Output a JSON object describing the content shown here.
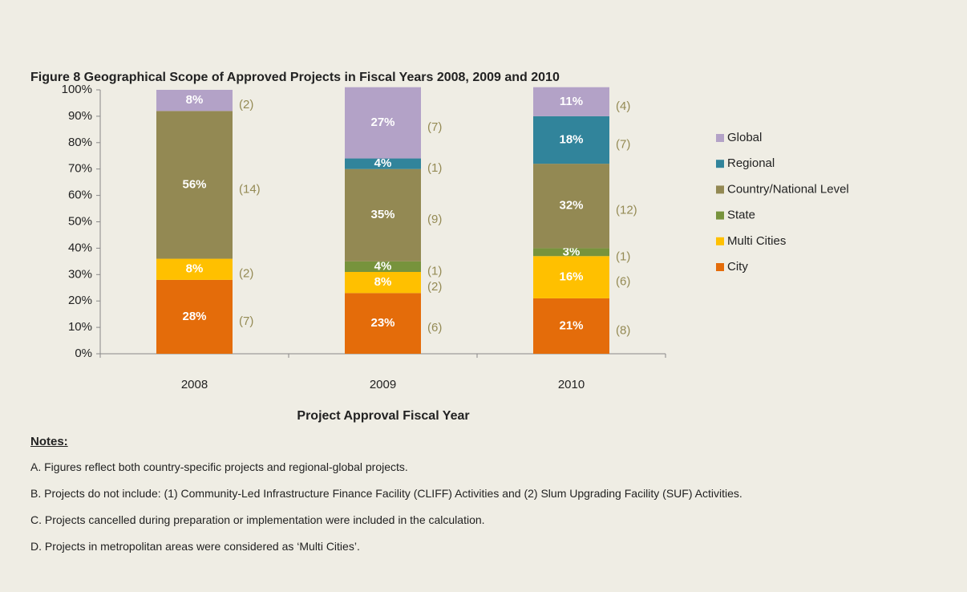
{
  "chart_data": {
    "type": "stacked_bar",
    "title": "Figure 8   Geographical Scope of Approved Projects in Fiscal Years 2008, 2009 and 2010",
    "x_label": "Project Approval Fiscal Year",
    "categories": [
      "2008",
      "2009",
      "2010"
    ],
    "ylim": [
      0,
      100
    ],
    "yticks": [
      {
        "value": 0,
        "label": "0%"
      },
      {
        "value": 10,
        "label": "10%"
      },
      {
        "value": 20,
        "label": "20%"
      },
      {
        "value": 30,
        "label": "30%"
      },
      {
        "value": 40,
        "label": "40%"
      },
      {
        "value": 50,
        "label": "50%"
      },
      {
        "value": 60,
        "label": "60%"
      },
      {
        "value": 70,
        "label": "70%"
      },
      {
        "value": 80,
        "label": "80%"
      },
      {
        "value": 90,
        "label": "90%"
      },
      {
        "value": 100,
        "label": "100%"
      }
    ],
    "legend": "right",
    "series": [
      {
        "name": "City",
        "color": "#e46c0a",
        "values": [
          28,
          23,
          21
        ],
        "value_labels": [
          "28%",
          "23%",
          "21%"
        ],
        "counts": [
          7,
          6,
          8
        ],
        "count_labels": [
          "(7)",
          "(6)",
          "(8)"
        ]
      },
      {
        "name": "Multi Cities",
        "color": "#ffc000",
        "values": [
          8,
          8,
          16
        ],
        "value_labels": [
          "8%",
          "8%",
          "16%"
        ],
        "counts": [
          2,
          2,
          6
        ],
        "count_labels": [
          "(2)",
          "(2)",
          "(6)"
        ]
      },
      {
        "name": "State",
        "color": "#77933c",
        "values": [
          0,
          4,
          3
        ],
        "value_labels": [
          null,
          "4%",
          "3%"
        ],
        "counts": [
          null,
          1,
          1
        ],
        "count_labels": [
          null,
          "(1)",
          "(1)"
        ]
      },
      {
        "name": "Country/National Level",
        "color": "#938953",
        "values": [
          56,
          35,
          32
        ],
        "value_labels": [
          "56%",
          "35%",
          "32%"
        ],
        "counts": [
          14,
          9,
          12
        ],
        "count_labels": [
          "(14)",
          "(9)",
          "(12)"
        ]
      },
      {
        "name": "Regional",
        "color": "#31849b",
        "values": [
          0,
          4,
          18
        ],
        "value_labels": [
          null,
          "4%",
          "18%"
        ],
        "counts": [
          null,
          1,
          7
        ],
        "count_labels": [
          null,
          "(1)",
          "(7)"
        ]
      },
      {
        "name": "Global",
        "color": "#b3a2c7",
        "values": [
          8,
          27,
          11
        ],
        "value_labels": [
          "8%",
          "27%",
          "11%"
        ],
        "counts": [
          2,
          7,
          4
        ],
        "count_labels": [
          "(2)",
          "(7)",
          "(4)"
        ]
      }
    ]
  },
  "notes": {
    "heading": "Notes:",
    "items": [
      "A. Figures reflect both country-specific projects and regional-global projects.",
      "B. Projects do not include: (1) Community-Led Infrastructure Finance Facility (CLIFF) Activities and (2) Slum Upgrading Facility (SUF) Activities.",
      "C. Projects cancelled during preparation or implementation were included in the calculation.",
      "D. Projects in metropolitan areas were considered as ‘Multi Cities’."
    ]
  }
}
